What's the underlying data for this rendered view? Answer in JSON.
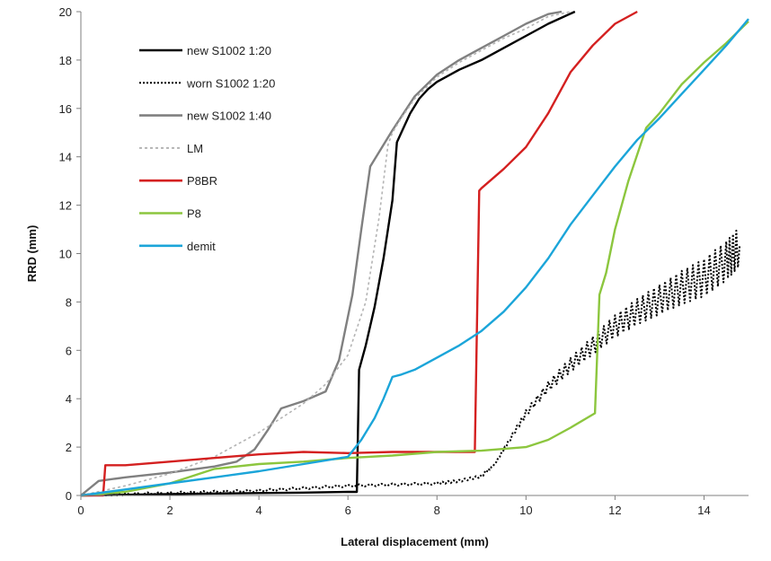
{
  "chart_data": {
    "type": "line",
    "xlabel": "Lateral displacement  (mm)",
    "ylabel": "RRD (mm)",
    "xlim": [
      0,
      15
    ],
    "ylim": [
      0,
      20
    ],
    "xticks": [
      0,
      2,
      4,
      6,
      8,
      10,
      12,
      14
    ],
    "yticks": [
      0,
      2,
      4,
      6,
      8,
      10,
      12,
      14,
      16,
      18,
      20
    ],
    "grid": false,
    "legend_position": "top-left",
    "series": [
      {
        "name": "new S1002 1:20",
        "color": "#000000",
        "dash": "solid",
        "x": [
          0,
          1,
          2,
          3,
          4,
          5,
          6,
          6.2,
          6.25,
          6.4,
          6.6,
          6.8,
          7.0,
          7.1,
          7.2,
          7.4,
          7.6,
          7.8,
          8.0,
          8.2,
          8.5,
          9.0,
          9.5,
          10.0,
          10.5,
          11.1
        ],
        "y": [
          0,
          0.03,
          0.06,
          0.08,
          0.1,
          0.12,
          0.15,
          0.15,
          5.2,
          6.2,
          7.8,
          9.8,
          12.2,
          14.6,
          15.0,
          15.8,
          16.4,
          16.8,
          17.1,
          17.3,
          17.6,
          18.0,
          18.5,
          19.0,
          19.5,
          20.0
        ]
      },
      {
        "name": "worn S1002 1:20",
        "color": "#000000",
        "dash": "dotted",
        "zigzag": true,
        "x": [
          0,
          0.5,
          1,
          2,
          3,
          4,
          5,
          6,
          7,
          8,
          8.5,
          9.0,
          9.3,
          9.6,
          10.0,
          10.5,
          11.0,
          11.5,
          12.0,
          12.5,
          13.0,
          13.5,
          14.0,
          14.5,
          14.8
        ],
        "y": [
          0,
          0.04,
          0.06,
          0.1,
          0.15,
          0.2,
          0.3,
          0.4,
          0.45,
          0.5,
          0.6,
          0.8,
          1.3,
          2.2,
          3.4,
          4.5,
          5.4,
          6.2,
          7.0,
          7.6,
          8.1,
          8.6,
          9.0,
          9.7,
          10.3
        ]
      },
      {
        "name": "new S1002 1:40",
        "color": "#808080",
        "dash": "solid",
        "x": [
          0,
          0.4,
          1,
          2,
          3,
          3.5,
          3.9,
          4.2,
          4.5,
          5.0,
          5.5,
          5.8,
          6.1,
          6.3,
          6.5,
          7.0,
          7.5,
          8.0,
          8.5,
          9.0,
          9.5,
          10.0,
          10.5,
          10.8
        ],
        "y": [
          0,
          0.6,
          0.75,
          0.95,
          1.2,
          1.4,
          1.9,
          2.7,
          3.6,
          3.9,
          4.3,
          5.6,
          8.3,
          11.0,
          13.6,
          15.1,
          16.5,
          17.4,
          18.0,
          18.5,
          19.0,
          19.5,
          19.9,
          20.0
        ]
      },
      {
        "name": "LM",
        "color": "#b4b4b4",
        "dash": "dotted",
        "x": [
          0,
          1,
          2,
          3,
          4,
          5,
          5.5,
          6.0,
          6.4,
          6.7,
          6.9,
          7.0,
          7.2,
          7.5,
          8.0,
          8.5,
          9.0,
          9.5,
          10.0,
          10.5,
          11.0
        ],
        "y": [
          0,
          0.4,
          0.9,
          1.6,
          2.6,
          3.8,
          4.6,
          5.8,
          8.0,
          11.5,
          14.5,
          15.0,
          15.6,
          16.4,
          17.3,
          17.9,
          18.4,
          18.9,
          19.3,
          19.8,
          20.0
        ]
      },
      {
        "name": "P8BR",
        "color": "#d42020",
        "dash": "solid",
        "x": [
          0,
          0.5,
          0.55,
          1,
          2,
          3,
          4,
          5,
          6,
          7,
          8,
          8.85,
          8.95,
          9.0,
          9.5,
          10.0,
          10.5,
          11.0,
          11.5,
          12.0,
          12.5
        ],
        "y": [
          0,
          0,
          1.25,
          1.25,
          1.4,
          1.55,
          1.7,
          1.8,
          1.75,
          1.8,
          1.8,
          1.8,
          12.6,
          12.7,
          13.5,
          14.4,
          15.8,
          17.5,
          18.6,
          19.5,
          20.0
        ]
      },
      {
        "name": "P8",
        "color": "#8cc63e",
        "dash": "solid",
        "x": [
          0,
          1,
          2,
          3,
          4,
          5,
          6,
          7,
          8,
          9,
          10,
          10.5,
          11,
          11.55,
          11.65,
          11.8,
          12.0,
          12.3,
          12.7,
          13.0,
          13.5,
          14.0,
          14.5,
          15.0
        ],
        "y": [
          0,
          0.15,
          0.5,
          1.1,
          1.3,
          1.4,
          1.55,
          1.65,
          1.8,
          1.85,
          2.0,
          2.3,
          2.8,
          3.4,
          8.3,
          9.2,
          11.0,
          13.0,
          15.2,
          15.8,
          17.0,
          17.9,
          18.7,
          19.6
        ]
      },
      {
        "name": "demit",
        "color": "#1ba5d9",
        "dash": "solid",
        "x": [
          0,
          1,
          2,
          3,
          4,
          5,
          6,
          6.3,
          6.6,
          6.8,
          7.0,
          7.2,
          7.5,
          8.0,
          8.5,
          9.0,
          9.5,
          10.0,
          10.5,
          11.0,
          11.5,
          12.0,
          12.5,
          13.0,
          13.5,
          14.0,
          14.5,
          15.0
        ],
        "y": [
          0,
          0.25,
          0.5,
          0.75,
          1.0,
          1.3,
          1.6,
          2.3,
          3.2,
          4.0,
          4.9,
          5.0,
          5.2,
          5.7,
          6.2,
          6.8,
          7.6,
          8.6,
          9.8,
          11.2,
          12.4,
          13.6,
          14.7,
          15.6,
          16.6,
          17.6,
          18.6,
          19.7
        ]
      }
    ]
  }
}
